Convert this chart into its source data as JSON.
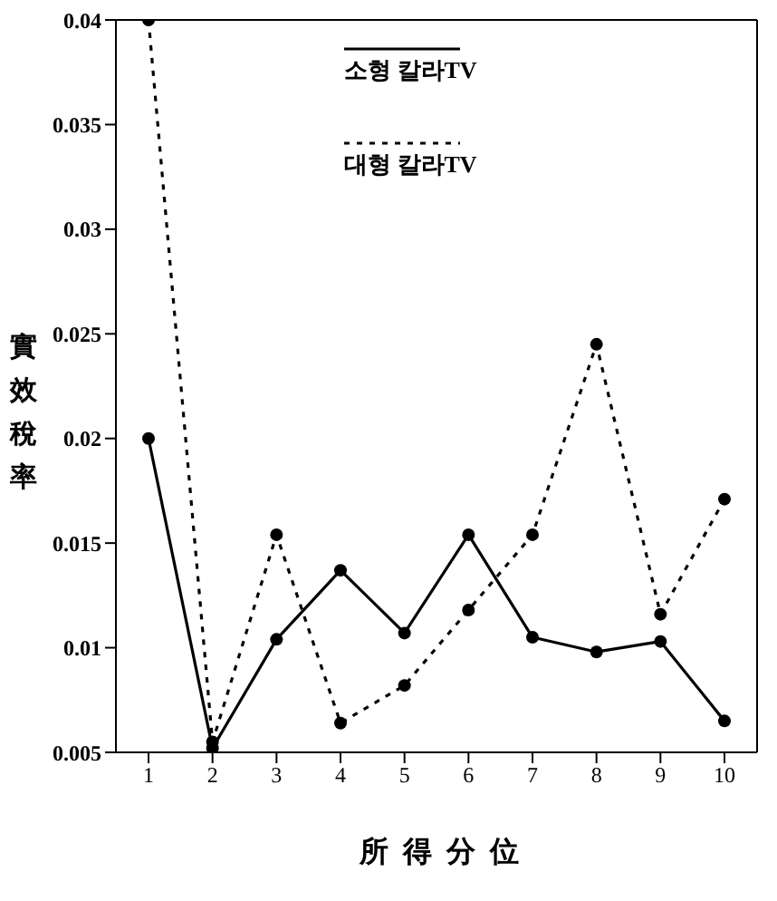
{
  "chart_data": {
    "type": "line",
    "xlabel": "所得分位",
    "ylabel": "實效稅率",
    "categories": [
      "1",
      "2",
      "3",
      "4",
      "5",
      "6",
      "7",
      "8",
      "9",
      "10"
    ],
    "series": [
      {
        "name": "소형 칼라TV",
        "color": "#000000",
        "line_style": "solid",
        "values": [
          0.02,
          0.0052,
          0.0104,
          0.0137,
          0.0107,
          0.0154,
          0.0105,
          0.0098,
          0.0103,
          0.0065
        ]
      },
      {
        "name": "대형 칼라TV",
        "color": "#000000",
        "line_style": "dotted",
        "values": [
          0.04,
          0.0055,
          0.0154,
          0.0064,
          0.0082,
          0.0118,
          0.0154,
          0.0245,
          0.0116,
          0.0171
        ]
      }
    ],
    "ylim": [
      0.005,
      0.04
    ],
    "yticks": [
      0.005,
      0.01,
      0.015,
      0.02,
      0.025,
      0.03,
      0.035,
      0.04
    ],
    "marker": "circle",
    "legend": "top",
    "grid": false
  }
}
